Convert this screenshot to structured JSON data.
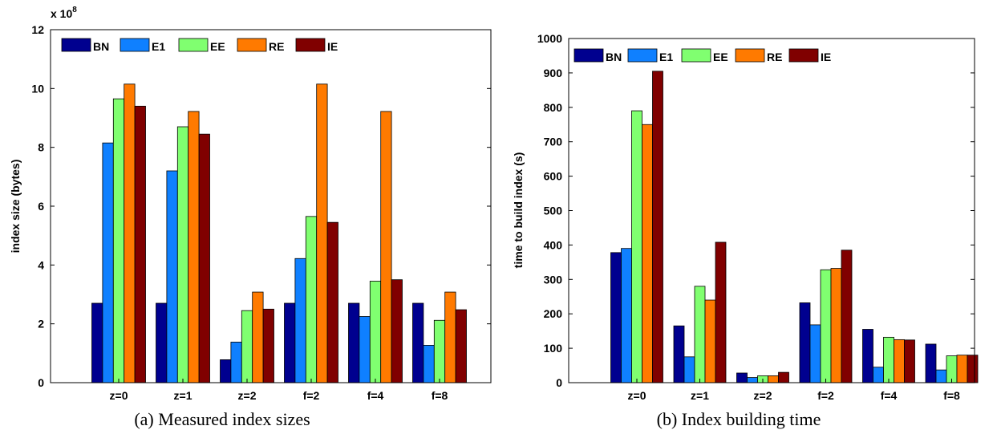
{
  "chart_data": [
    {
      "type": "bar",
      "categories": [
        "z=0",
        "z=1",
        "z=2",
        "f=2",
        "f=4",
        "f=8"
      ],
      "series": [
        {
          "name": "BN",
          "color": "#00008f",
          "values": [
            2.7,
            2.7,
            0.78,
            2.7,
            2.7,
            2.7
          ]
        },
        {
          "name": "E1",
          "color": "#0f80ff",
          "values": [
            8.15,
            7.2,
            1.38,
            4.22,
            2.25,
            1.27
          ]
        },
        {
          "name": "EE",
          "color": "#80ff70",
          "values": [
            9.65,
            8.7,
            2.45,
            5.65,
            3.45,
            2.12
          ]
        },
        {
          "name": "RE",
          "color": "#ff7a00",
          "values": [
            10.15,
            9.22,
            3.08,
            10.15,
            9.22,
            3.08
          ]
        },
        {
          "name": "IE",
          "color": "#800000",
          "values": [
            9.4,
            8.45,
            2.5,
            5.45,
            3.5,
            2.48
          ]
        }
      ],
      "ylabel": "index size (bytes)",
      "yexponent": "x 10",
      "yexponent_power": "8",
      "ylim": [
        0,
        12
      ],
      "yticks": [
        "0",
        "2",
        "4",
        "6",
        "8",
        "10",
        "12"
      ],
      "legend_position": "top-left",
      "grid": false,
      "caption": "(a) Measured index sizes"
    },
    {
      "type": "bar",
      "categories": [
        "z=0",
        "z=1",
        "z=2",
        "f=2",
        "f=4",
        "f=8"
      ],
      "series": [
        {
          "name": "BN",
          "color": "#00008f",
          "values": [
            378,
            165,
            28,
            232,
            155,
            112
          ]
        },
        {
          "name": "E1",
          "color": "#0f80ff",
          "values": [
            390,
            75,
            15,
            168,
            45,
            37
          ]
        },
        {
          "name": "EE",
          "color": "#80ff70",
          "values": [
            790,
            280,
            20,
            328,
            132,
            78
          ]
        },
        {
          "name": "RE",
          "color": "#ff7a00",
          "values": [
            750,
            240,
            20,
            332,
            125,
            80
          ]
        },
        {
          "name": "IE",
          "color": "#800000",
          "values": [
            905,
            408,
            30,
            385,
            124,
            80
          ]
        }
      ],
      "ylabel": "time to build index (s)",
      "ylim": [
        0,
        1000
      ],
      "yticks": [
        "0",
        "100",
        "200",
        "300",
        "400",
        "500",
        "600",
        "700",
        "800",
        "900",
        "1000"
      ],
      "legend_position": "top-left",
      "grid": false,
      "caption": "(b) Index building time"
    }
  ]
}
